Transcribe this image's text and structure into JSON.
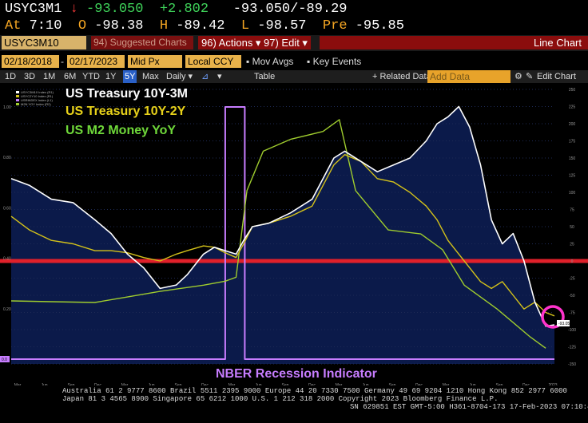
{
  "quote": {
    "ticker": "USYC3M1",
    "arrow": "↓",
    "last": "-93.050",
    "change": "+2.802",
    "bid_ask": "-93.050/-89.29",
    "at_label": "At",
    "time": "7:10",
    "open_label": "O",
    "open": "-98.38",
    "high_label": "H",
    "high": "-89.42",
    "low_label": "L",
    "low": "-98.57",
    "pre_label": "Pre",
    "pre": "-95.85"
  },
  "toolbar": {
    "security": "USYC3M10 Index",
    "suggested": "94) Suggested Charts",
    "actions": "96) Actions ▾",
    "edit": "97) Edit ▾",
    "line_chart": "Line Chart"
  },
  "settings": {
    "start_date": "02/18/2018",
    "end_date": "02/17/2023",
    "price_field": "Mid Px",
    "currency": "Local CCY",
    "mov_avgs": "Mov Avgs",
    "key_events": "Key Events"
  },
  "ranges": {
    "items": [
      "1D",
      "3D",
      "1M",
      "6M",
      "YTD",
      "1Y",
      "5Y",
      "Max"
    ],
    "selected": "5Y",
    "frequency": "Daily ▾",
    "table": "Table",
    "related": "+ Related Data",
    "add_data_placeholder": "Add Data",
    "edit_chart": "Edit Chart"
  },
  "chart_data": {
    "type": "line",
    "annotations": {
      "t10y3m": "US Treasury 10Y-3M",
      "t10y2y": "US Treasury 10Y-2Y",
      "m2": "US M2 Money YoY",
      "nber": "NBER Recession Indicator"
    },
    "mini_legend": [
      "USYC3M10 Index (R1)",
      "USYC2Y10 Index (R1)",
      "USRINDEX Index (L1)",
      "M2N YOY Index (R2)"
    ],
    "colors": {
      "t10y3m": "#ffffff",
      "t10y2y": "#d4c21a",
      "m2": "#9fcc2e",
      "nber": "#c77dff",
      "fill": "#0b1a4a",
      "threshold": "#e0202a",
      "highlight": "#ff33cc"
    },
    "ylim_left": [
      0,
      1
    ],
    "left_ticks": [
      "1.00",
      "0.80",
      "0.60",
      "0.40",
      "0.20"
    ],
    "right_ticks": [
      "250",
      "225",
      "200",
      "175",
      "150",
      "125",
      "100",
      "75",
      "50",
      "25",
      "0",
      "-25",
      "-50",
      "-75",
      "-100",
      "-125",
      "-150"
    ],
    "x_ticks": [
      "Mar",
      "Jun",
      "Sep",
      "Dec",
      "Mar",
      "Jun",
      "Sep",
      "Dec",
      "Mar",
      "Jun",
      "Sep",
      "Dec",
      "Mar",
      "Jun",
      "Sep",
      "Dec",
      "Mar",
      "Jun",
      "Sep",
      "Dec",
      "2023"
    ],
    "nber_level_label": "0.0",
    "last_value_label": "-93.05",
    "zero_reference": 0,
    "series": [
      {
        "name": "USYC3M10 Index",
        "x": [
          2018.13,
          2018.3,
          2018.5,
          2018.7,
          2018.9,
          2019.05,
          2019.2,
          2019.35,
          2019.5,
          2019.65,
          2019.75,
          2019.9,
          2020.0,
          2020.1,
          2020.2,
          2020.27,
          2020.35,
          2020.5,
          2020.7,
          2020.9,
          2021.1,
          2021.2,
          2021.35,
          2021.5,
          2021.65,
          2021.8,
          2021.95,
          2022.05,
          2022.15,
          2022.25,
          2022.35,
          2022.45,
          2022.55,
          2022.65,
          2022.75,
          2022.85,
          2022.95,
          2023.05,
          2023.13
        ],
        "values": [
          120,
          110,
          90,
          85,
          60,
          40,
          10,
          -10,
          -40,
          -35,
          -20,
          10,
          20,
          15,
          10,
          30,
          50,
          55,
          70,
          90,
          150,
          160,
          145,
          130,
          140,
          150,
          175,
          200,
          210,
          225,
          195,
          140,
          60,
          25,
          40,
          0,
          -60,
          -95,
          -93
        ]
      },
      {
        "name": "USYC2Y10 Index",
        "x": [
          2018.13,
          2018.3,
          2018.5,
          2018.7,
          2018.9,
          2019.05,
          2019.2,
          2019.35,
          2019.5,
          2019.65,
          2019.75,
          2019.9,
          2020.0,
          2020.1,
          2020.2,
          2020.27,
          2020.35,
          2020.5,
          2020.7,
          2020.9,
          2021.1,
          2021.2,
          2021.35,
          2021.5,
          2021.65,
          2021.8,
          2021.95,
          2022.05,
          2022.15,
          2022.25,
          2022.35,
          2022.45,
          2022.55,
          2022.65,
          2022.75,
          2022.85,
          2022.95,
          2023.05,
          2023.13
        ],
        "values": [
          65,
          45,
          30,
          25,
          15,
          15,
          12,
          5,
          0,
          10,
          15,
          22,
          20,
          12,
          5,
          25,
          50,
          55,
          65,
          80,
          140,
          155,
          145,
          120,
          115,
          100,
          80,
          60,
          30,
          10,
          -10,
          -30,
          -40,
          -30,
          -50,
          -70,
          -60,
          -75,
          -80
        ]
      },
      {
        "name": "M2N YOY Index",
        "x": [
          2018.13,
          2018.5,
          2018.9,
          2019.2,
          2019.5,
          2019.9,
          2020.1,
          2020.2,
          2020.3,
          2020.45,
          2020.7,
          2021.0,
          2021.15,
          2021.3,
          2021.6,
          2021.9,
          2022.1,
          2022.3,
          2022.6,
          2022.9,
          2023.05
        ],
        "values": [
          4.0,
          3.9,
          3.8,
          4.5,
          5.2,
          6.0,
          6.5,
          7.0,
          18.0,
          23.0,
          24.5,
          25.5,
          27.0,
          18.0,
          13.0,
          12.5,
          10.5,
          6.0,
          3.0,
          -0.5,
          -2.0
        ]
      },
      {
        "name": "USRINDEX Index",
        "x": [
          2018.13,
          2020.1,
          2020.1,
          2020.28,
          2020.28,
          2023.13
        ],
        "values": [
          0,
          0,
          1,
          1,
          0,
          0
        ]
      }
    ]
  },
  "footer": {
    "line1": "Australia 61 2 9777 8600 Brazil 5511 2395 9000 Europe 44 20 7330 7500 Germany 49 69 9204 1210 Hong Kong 852 2977 6000",
    "line2": "Japan 81 3 4565 8900       Singapore 65 6212 1000      U.S. 1 212 318 2000                Copyright 2023 Bloomberg Finance L.P.",
    "line3": "SN 629851 EST  GMT-5:00 H361-8704-173 17-Feb-2023 07:10:42"
  }
}
